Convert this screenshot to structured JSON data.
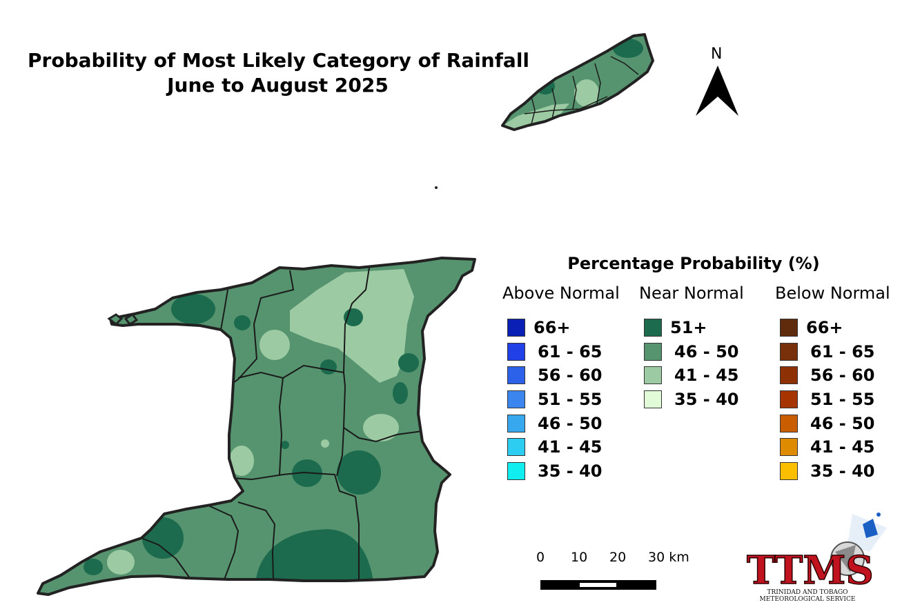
{
  "title": {
    "line1": "Probability of Most Likely Category of Rainfall",
    "line2": "June to August 2025"
  },
  "north_arrow": {
    "label": "N"
  },
  "legend": {
    "title": "Percentage Probability (%)",
    "columns": [
      {
        "heading": "Above Normal",
        "items": [
          {
            "label": "66+",
            "color": "#0a1fb4"
          },
          {
            "label": "61 - 65",
            "color": "#2140e6"
          },
          {
            "label": "56 - 60",
            "color": "#2c61ea"
          },
          {
            "label": "51 - 55",
            "color": "#3a86ee"
          },
          {
            "label": "46 - 50",
            "color": "#37a8ee"
          },
          {
            "label": "41 - 45",
            "color": "#2ccdf0"
          },
          {
            "label": "35 - 40",
            "color": "#10eef0"
          }
        ]
      },
      {
        "heading": "Near Normal",
        "items": [
          {
            "label": "51+",
            "color": "#1c6b4e"
          },
          {
            "label": "46 - 50",
            "color": "#55946f"
          },
          {
            "label": "41 - 45",
            "color": "#9ccaa2"
          },
          {
            "label": "35 - 40",
            "color": "#e1fbd8"
          }
        ]
      },
      {
        "heading": "Below Normal",
        "items": [
          {
            "label": "66+",
            "color": "#5e2c0c"
          },
          {
            "label": "61 - 65",
            "color": "#77300a"
          },
          {
            "label": "56 - 60",
            "color": "#8d3004"
          },
          {
            "label": "51 - 55",
            "color": "#a53400"
          },
          {
            "label": "46 - 50",
            "color": "#c85e00"
          },
          {
            "label": "41 - 45",
            "color": "#df8b00"
          },
          {
            "label": "35 - 40",
            "color": "#fbbf00"
          }
        ]
      }
    ]
  },
  "scale_bar": {
    "labels": [
      "0",
      "10",
      "20",
      "30 km"
    ]
  },
  "logo": {
    "text": "TTMS",
    "subtitle_line1": "TRINIDAD AND TOBAGO",
    "subtitle_line2": "METEOROLOGICAL SERVICE"
  }
}
